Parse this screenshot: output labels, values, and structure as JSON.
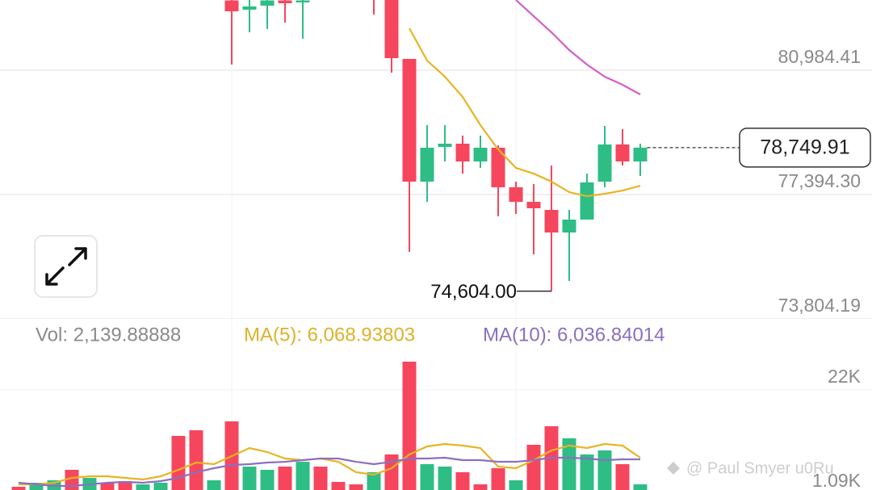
{
  "chart_data": [
    {
      "type": "candlestick",
      "categories": [
        null,
        null,
        null,
        null,
        null,
        null,
        null,
        null,
        null,
        null,
        null,
        null,
        null,
        null,
        null,
        null,
        null,
        null,
        null,
        null,
        null,
        null,
        null,
        null,
        null,
        null,
        null,
        null,
        null,
        null,
        null,
        null,
        null,
        null,
        null,
        null
      ],
      "open": [
        null,
        null,
        null,
        null,
        null,
        null,
        null,
        null,
        null,
        null,
        null,
        null,
        83000,
        82733,
        82849,
        83000,
        82943,
        null,
        null,
        null,
        83300,
        83050,
        81311,
        77767,
        78770,
        78863,
        78350,
        78747,
        77604,
        77184,
        76951,
        76298,
        76671,
        77767,
        78840,
        78350
      ],
      "high": [
        null,
        null,
        null,
        null,
        null,
        null,
        null,
        null,
        null,
        null,
        null,
        null,
        83050,
        83050,
        83050,
        83050,
        83050,
        null,
        null,
        null,
        83400,
        83100,
        81311,
        79399,
        79399,
        79096,
        79096,
        78816,
        77767,
        77697,
        78233,
        76951,
        77999,
        79376,
        79283,
        78863
      ],
      "low": [
        null,
        null,
        null,
        null,
        null,
        null,
        null,
        null,
        null,
        null,
        null,
        null,
        81148,
        82080,
        82173,
        82360,
        81894,
        null,
        null,
        null,
        82593,
        80914,
        75739,
        77184,
        78350,
        77999,
        78163,
        76765,
        76835,
        75669,
        74604,
        74900,
        76671,
        77604,
        78233,
        77930
      ],
      "close": [
        null,
        null,
        null,
        null,
        null,
        null,
        null,
        null,
        null,
        null,
        null,
        null,
        82686,
        82826,
        83000,
        82919,
        83000,
        null,
        null,
        null,
        83200,
        81334,
        77767,
        78747,
        78863,
        78350,
        78747,
        77604,
        77184,
        76998,
        76298,
        76671,
        77744,
        78840,
        78350,
        78749.91
      ],
      "up_color": "#2ebd85",
      "down_color": "#f6465d",
      "lines": [
        {
          "color": "#e8b422",
          "values": [
            null,
            null,
            null,
            null,
            null,
            null,
            null,
            null,
            null,
            null,
            null,
            null,
            null,
            null,
            null,
            null,
            null,
            null,
            null,
            null,
            null,
            null,
            82196,
            81264,
            80798,
            80215,
            79399,
            78700,
            78163,
            77999,
            77767,
            77464,
            77347,
            77417,
            77510,
            77650
          ]
        },
        {
          "color": "#d45ec9",
          "values": [
            null,
            null,
            null,
            null,
            null,
            null,
            null,
            null,
            null,
            null,
            null,
            null,
            null,
            null,
            null,
            null,
            null,
            null,
            null,
            null,
            null,
            null,
            null,
            null,
            null,
            null,
            null,
            null,
            83013,
            82546,
            82080,
            81567,
            81148,
            80798,
            80565,
            80285
          ]
        }
      ],
      "ylim": [
        73804.19,
        83012.6
      ],
      "yticks": [
        {
          "value": 80984.41,
          "label": "80,984.41"
        },
        {
          "value": 77394.3,
          "label": "77,394.30"
        },
        {
          "value": 73804.19,
          "label": "73,804.19"
        }
      ],
      "grid": true,
      "last_price": {
        "value": 78749.91,
        "label": "78,749.91"
      },
      "low_marker": {
        "value": 74604.0,
        "label": "74,604.00"
      }
    },
    {
      "type": "bar",
      "categories": [
        null,
        null,
        null,
        null,
        null,
        null,
        null,
        null,
        null,
        null,
        null,
        null,
        null,
        null,
        null,
        null,
        null,
        null,
        null,
        null,
        null,
        null,
        null,
        null,
        null,
        null,
        null,
        null,
        null,
        null,
        null,
        null,
        null,
        null,
        null,
        null
      ],
      "values": [
        2545,
        3355,
        3842,
        5949,
        4328,
        3355,
        3680,
        3031,
        3355,
        12757,
        13892,
        3842,
        15675,
        6597,
        5949,
        6597,
        7564,
        6597,
        3518,
        3031,
        5463,
        9029,
        27671,
        7084,
        6597,
        5463,
        3031,
        6273,
        3842,
        10974,
        14702,
        12271,
        9029,
        9839,
        7084,
        3031
      ],
      "colors": [
        "#f6465d",
        "#2ebd85",
        "#2ebd85",
        "#f6465d",
        "#2ebd85",
        "#f6465d",
        "#f6465d",
        "#2ebd85",
        "#2ebd85",
        "#f6465d",
        "#f6465d",
        "#2ebd85",
        "#f6465d",
        "#2ebd85",
        "#2ebd85",
        "#f6465d",
        "#2ebd85",
        "#f6465d",
        "#f6465d",
        "#f6465d",
        "#2ebd85",
        "#f6465d",
        "#f6465d",
        "#2ebd85",
        "#2ebd85",
        "#f6465d",
        "#f6465d",
        "#f6465d",
        "#2ebd85",
        "#f6465d",
        "#f6465d",
        "#2ebd85",
        "#2ebd85",
        "#2ebd85",
        "#f6465d",
        "#2ebd85"
      ],
      "lines": [
        {
          "color": "#e8b422",
          "values": [
            3031,
            3031,
            3355,
            4328,
            4652,
            4652,
            4328,
            4004,
            4652,
            5949,
            7408,
            7084,
            8705,
            10326,
            9515,
            8218,
            7894,
            8218,
            7564,
            5463,
            4977,
            6273,
            9029,
            10650,
            11136,
            10812,
            10326,
            6597,
            6273,
            7894,
            9839,
            10812,
            10326,
            11136,
            10812,
            8380
          ]
        },
        {
          "color": "#8b6fc0",
          "values": [
            3355,
            3031,
            2707,
            2707,
            3031,
            3355,
            3518,
            3355,
            3680,
            4328,
            5463,
            6273,
            6921,
            7084,
            7408,
            7564,
            7894,
            8218,
            8218,
            7564,
            7084,
            7564,
            8218,
            8218,
            8380,
            7894,
            7894,
            7564,
            7564,
            7894,
            8380,
            8380,
            8218,
            7894,
            8056,
            8056
          ]
        }
      ],
      "ylim": [
        0,
        28967
      ],
      "yticks": [
        {
          "value": 22000,
          "label": "22K"
        },
        {
          "value": 1090,
          "label": "1.09K"
        }
      ],
      "info": [
        {
          "text": "Vol: 2,139.88888",
          "color": "#8a8a8a"
        },
        {
          "text": "MA(5): 6,068.93803",
          "color": "#e0b12a"
        },
        {
          "text": "MA(10): 6,036.84014",
          "color": "#8b6fc0"
        }
      ]
    }
  ],
  "watermark": "@ Paul Smyer u0Ru"
}
